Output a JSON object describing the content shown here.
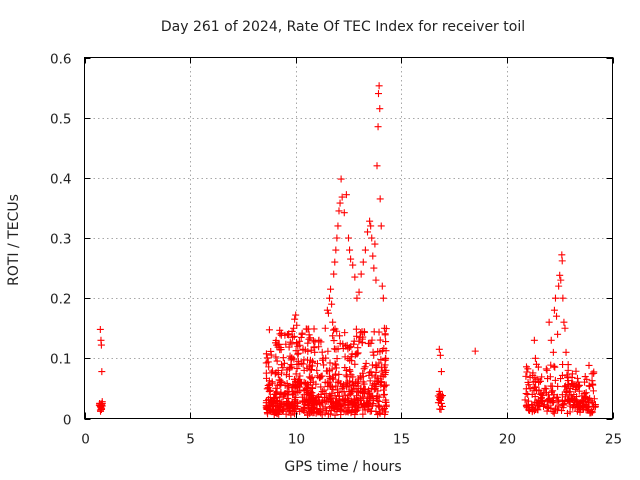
{
  "chart_data": {
    "type": "scatter",
    "title": "Day 261 of 2024, Rate Of TEC Index for receiver toil",
    "xlabel": "GPS time / hours",
    "ylabel": "ROTI / TECUs",
    "xlim": [
      0,
      25
    ],
    "ylim": [
      0,
      0.6
    ],
    "xticks": [
      0,
      5,
      10,
      15,
      20,
      25
    ],
    "xtick_labels": [
      "0",
      "5",
      "10",
      "15",
      "20",
      "25"
    ],
    "yticks": [
      0,
      0.1,
      0.2,
      0.3,
      0.4,
      0.5,
      0.6
    ],
    "ytick_labels": [
      "0",
      "0.1",
      "0.2",
      "0.3",
      "0.4",
      "0.5",
      "0.6"
    ],
    "grid": true,
    "marker": "+",
    "color": "#ff0000",
    "series": [
      {
        "name": "ROTI",
        "points": [
          [
            0.75,
            0.148
          ],
          [
            0.78,
            0.13
          ],
          [
            0.8,
            0.122
          ],
          [
            0.82,
            0.078
          ],
          [
            0.72,
            0.025
          ],
          [
            0.75,
            0.02
          ],
          [
            0.78,
            0.018
          ],
          [
            0.8,
            0.015
          ],
          [
            0.82,
            0.022
          ],
          [
            0.76,
            0.012
          ],
          [
            0.84,
            0.028
          ],
          [
            8.7,
            0.094
          ],
          [
            8.7,
            0.055
          ],
          [
            8.75,
            0.045
          ],
          [
            8.8,
            0.035
          ],
          [
            8.85,
            0.028
          ],
          [
            8.9,
            0.02
          ],
          [
            8.95,
            0.015
          ],
          [
            9.0,
            0.01
          ],
          [
            9.05,
            0.025
          ],
          [
            9.1,
            0.03
          ],
          [
            9.2,
            0.018
          ],
          [
            9.3,
            0.04
          ],
          [
            9.4,
            0.012
          ],
          [
            9.5,
            0.055
          ],
          [
            9.6,
            0.025
          ],
          [
            9.7,
            0.07
          ],
          [
            9.8,
            0.1
          ],
          [
            9.85,
            0.135
          ],
          [
            9.9,
            0.15
          ],
          [
            9.95,
            0.165
          ],
          [
            10.0,
            0.172
          ],
          [
            10.05,
            0.155
          ],
          [
            10.1,
            0.12
          ],
          [
            10.15,
            0.09
          ],
          [
            10.2,
            0.06
          ],
          [
            10.3,
            0.14
          ],
          [
            10.35,
            0.115
          ],
          [
            10.4,
            0.08
          ],
          [
            10.5,
            0.05
          ],
          [
            10.6,
            0.03
          ],
          [
            10.7,
            0.06
          ],
          [
            10.8,
            0.095
          ],
          [
            10.9,
            0.11
          ],
          [
            11.0,
            0.08
          ],
          [
            11.1,
            0.13
          ],
          [
            11.2,
            0.07
          ],
          [
            11.3,
            0.1
          ],
          [
            11.4,
            0.15
          ],
          [
            11.5,
            0.18
          ],
          [
            11.55,
            0.175
          ],
          [
            11.6,
            0.2
          ],
          [
            11.65,
            0.215
          ],
          [
            11.7,
            0.19
          ],
          [
            11.75,
            0.16
          ],
          [
            11.8,
            0.24
          ],
          [
            11.85,
            0.26
          ],
          [
            11.9,
            0.28
          ],
          [
            11.95,
            0.3
          ],
          [
            12.0,
            0.32
          ],
          [
            12.05,
            0.345
          ],
          [
            12.1,
            0.358
          ],
          [
            12.15,
            0.398
          ],
          [
            12.2,
            0.368
          ],
          [
            12.3,
            0.342
          ],
          [
            12.4,
            0.372
          ],
          [
            12.5,
            0.3
          ],
          [
            12.55,
            0.28
          ],
          [
            12.6,
            0.265
          ],
          [
            12.7,
            0.255
          ],
          [
            12.8,
            0.235
          ],
          [
            12.9,
            0.2
          ],
          [
            13.0,
            0.21
          ],
          [
            13.1,
            0.24
          ],
          [
            13.2,
            0.26
          ],
          [
            13.3,
            0.28
          ],
          [
            13.4,
            0.31
          ],
          [
            13.5,
            0.328
          ],
          [
            13.55,
            0.32
          ],
          [
            13.6,
            0.3
          ],
          [
            13.65,
            0.27
          ],
          [
            13.7,
            0.25
          ],
          [
            13.75,
            0.29
          ],
          [
            13.8,
            0.23
          ],
          [
            13.85,
            0.42
          ],
          [
            13.9,
            0.485
          ],
          [
            13.92,
            0.54
          ],
          [
            13.95,
            0.553
          ],
          [
            13.98,
            0.515
          ],
          [
            14.0,
            0.365
          ],
          [
            14.05,
            0.32
          ],
          [
            14.1,
            0.22
          ],
          [
            14.15,
            0.2
          ],
          [
            14.2,
            0.15
          ],
          [
            14.25,
            0.1
          ],
          [
            9.0,
            0.04
          ],
          [
            9.3,
            0.06
          ],
          [
            9.6,
            0.045
          ],
          [
            10.0,
            0.035
          ],
          [
            10.4,
            0.06
          ],
          [
            10.8,
            0.05
          ],
          [
            11.2,
            0.04
          ],
          [
            11.6,
            0.07
          ],
          [
            12.0,
            0.06
          ],
          [
            12.4,
            0.08
          ],
          [
            12.8,
            0.09
          ],
          [
            13.2,
            0.07
          ],
          [
            13.6,
            0.05
          ],
          [
            14.0,
            0.06
          ],
          [
            14.2,
            0.04
          ],
          [
            16.8,
            0.115
          ],
          [
            16.85,
            0.105
          ],
          [
            16.9,
            0.078
          ],
          [
            16.8,
            0.045
          ],
          [
            16.82,
            0.035
          ],
          [
            16.85,
            0.03
          ],
          [
            16.9,
            0.025
          ],
          [
            16.95,
            0.02
          ],
          [
            16.88,
            0.015
          ],
          [
            18.5,
            0.112
          ],
          [
            20.9,
            0.07
          ],
          [
            21.0,
            0.06
          ],
          [
            21.1,
            0.05
          ],
          [
            21.2,
            0.04
          ],
          [
            21.3,
            0.13
          ],
          [
            21.35,
            0.1
          ],
          [
            21.4,
            0.09
          ],
          [
            21.5,
            0.06
          ],
          [
            21.6,
            0.04
          ],
          [
            21.7,
            0.03
          ],
          [
            21.8,
            0.05
          ],
          [
            21.9,
            0.08
          ],
          [
            22.0,
            0.16
          ],
          [
            22.1,
            0.13
          ],
          [
            22.2,
            0.11
          ],
          [
            22.25,
            0.18
          ],
          [
            22.3,
            0.2
          ],
          [
            22.35,
            0.17
          ],
          [
            22.4,
            0.14
          ],
          [
            22.45,
            0.22
          ],
          [
            22.5,
            0.238
          ],
          [
            22.55,
            0.23
          ],
          [
            22.6,
            0.272
          ],
          [
            22.62,
            0.262
          ],
          [
            22.65,
            0.2
          ],
          [
            22.7,
            0.16
          ],
          [
            22.75,
            0.15
          ],
          [
            22.8,
            0.11
          ],
          [
            22.9,
            0.08
          ],
          [
            23.0,
            0.05
          ],
          [
            23.2,
            0.03
          ],
          [
            23.4,
            0.02
          ],
          [
            23.6,
            0.015
          ],
          [
            23.8,
            0.018
          ],
          [
            24.0,
            0.012
          ],
          [
            24.1,
            0.02
          ]
        ],
        "clusters": [
          {
            "x_range": [
              8.6,
              14.3
            ],
            "y_base": [
              0.005,
              0.03
            ],
            "y_peak": 0.15,
            "count": 700
          },
          {
            "x_range": [
              20.8,
              24.2
            ],
            "y_base": [
              0.008,
              0.03
            ],
            "y_peak": 0.09,
            "count": 230
          },
          {
            "x_range": [
              0.7,
              0.85
            ],
            "y_base": [
              0.012,
              0.025
            ],
            "y_peak": 0.025,
            "count": 14
          },
          {
            "x_range": [
              16.75,
              16.95
            ],
            "y_base": [
              0.015,
              0.04
            ],
            "y_peak": 0.045,
            "count": 10
          }
        ]
      }
    ]
  }
}
